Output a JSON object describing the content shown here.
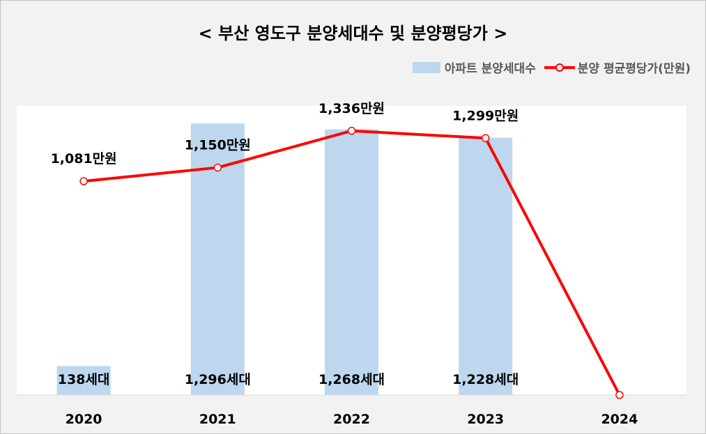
{
  "chart_data": {
    "type": "bar",
    "title": "< 부산 영도구 분양세대수 및 분양평당가 >",
    "categories": [
      "2020",
      "2021",
      "2022",
      "2023",
      "2024"
    ],
    "series": [
      {
        "name": "아파트 분양세대수",
        "type": "bar",
        "values": [
          138,
          1296,
          1268,
          1228,
          0
        ],
        "labels": [
          "138세대",
          "1,296세대",
          "1,268세대",
          "1,228세대",
          ""
        ],
        "color": "#bdd7ee"
      },
      {
        "name": "분양 평균평당가(만원)",
        "type": "line",
        "values": [
          1081,
          1150,
          1336,
          1299,
          0
        ],
        "labels": [
          "1,081만원",
          "1,150만원",
          "1,336만원",
          "1,299만원",
          ""
        ],
        "color": "#ff0000"
      }
    ],
    "grid": false,
    "legend_position": "top-right"
  }
}
